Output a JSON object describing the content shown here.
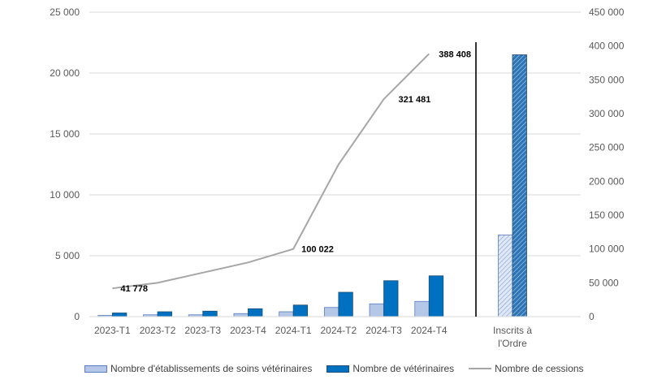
{
  "chart_data": {
    "type": "bar",
    "categories": [
      "2023-T1",
      "2023-T2",
      "2023-T3",
      "2023-T4",
      "2024-T1",
      "2024-T2",
      "2024-T3",
      "2024-T4"
    ],
    "extra_category": [
      "Inscrits à",
      "l'Ordre"
    ],
    "series": [
      {
        "name": "Nombre d'établissements de soins vétérinaires",
        "axis": "left",
        "kind": "bar",
        "values": [
          100,
          150,
          150,
          250,
          400,
          750,
          1050,
          1250
        ],
        "extra_value": 6700,
        "color": "#b4c7e7",
        "stroke": "#5b7cc4"
      },
      {
        "name": "Nombre de vétérinaires",
        "axis": "left",
        "kind": "bar",
        "values": [
          300,
          400,
          450,
          650,
          950,
          2000,
          2950,
          3350
        ],
        "extra_value": 21500,
        "color": "#0070c0",
        "stroke": "#1f4e79"
      },
      {
        "name": "Nombre de cessions",
        "axis": "right",
        "kind": "line",
        "values": [
          41778,
          50000,
          65000,
          80000,
          100022,
          225000,
          321481,
          388408
        ],
        "color": "#a6a6a6"
      }
    ],
    "data_labels": [
      {
        "index": 0,
        "text": "41 778"
      },
      {
        "index": 4,
        "text": "100 022"
      },
      {
        "index": 6,
        "text": "321 481"
      },
      {
        "index": 7,
        "text": "388 408"
      }
    ],
    "left_axis": {
      "ylim": [
        0,
        25000
      ],
      "ticks": [
        0,
        5000,
        10000,
        15000,
        20000,
        25000
      ],
      "tick_labels": [
        "0",
        "5 000",
        "10 000",
        "15 000",
        "20 000",
        "25 000"
      ]
    },
    "right_axis": {
      "ylim": [
        0,
        450000
      ],
      "ticks": [
        0,
        50000,
        100000,
        150000,
        200000,
        250000,
        300000,
        350000,
        400000,
        450000
      ],
      "tick_labels": [
        "0",
        "50 000",
        "100 000",
        "150 000",
        "200 000",
        "250 000",
        "300 000",
        "350 000",
        "400 000",
        "450 000"
      ]
    },
    "grid": true,
    "legend_position": "bottom"
  }
}
